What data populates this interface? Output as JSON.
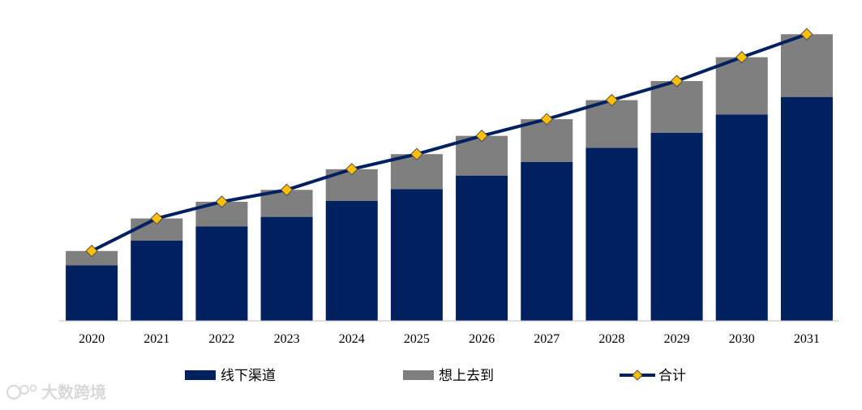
{
  "chart_data": {
    "type": "bar",
    "stacked": true,
    "title": "",
    "xlabel": "",
    "ylabel": "",
    "categories": [
      "2020",
      "2021",
      "2022",
      "2023",
      "2024",
      "2025",
      "2026",
      "2027",
      "2028",
      "2029",
      "2030",
      "2031"
    ],
    "series": [
      {
        "name": "线下渠道",
        "kind": "bar",
        "color": "#002060",
        "values": [
          70,
          101,
          119,
          131,
          151,
          166,
          183,
          200,
          218,
          237,
          260,
          282
        ]
      },
      {
        "name": "想上去到",
        "kind": "bar",
        "color": "#7f7f7f",
        "values": [
          18,
          28,
          31,
          34,
          40,
          44,
          50,
          54,
          60,
          65,
          72,
          79
        ]
      },
      {
        "name": "合计",
        "kind": "line",
        "color": "#002060",
        "marker_color": "#ffc000",
        "marker": "diamond",
        "values": [
          88,
          129,
          150,
          165,
          191,
          210,
          233,
          254,
          278,
          302,
          332,
          361
        ]
      }
    ],
    "ylim": [
      0,
      400
    ],
    "legend_position": "bottom",
    "y_axis_visible": false,
    "grid": false
  },
  "watermark": {
    "text": "大数跨境"
  }
}
